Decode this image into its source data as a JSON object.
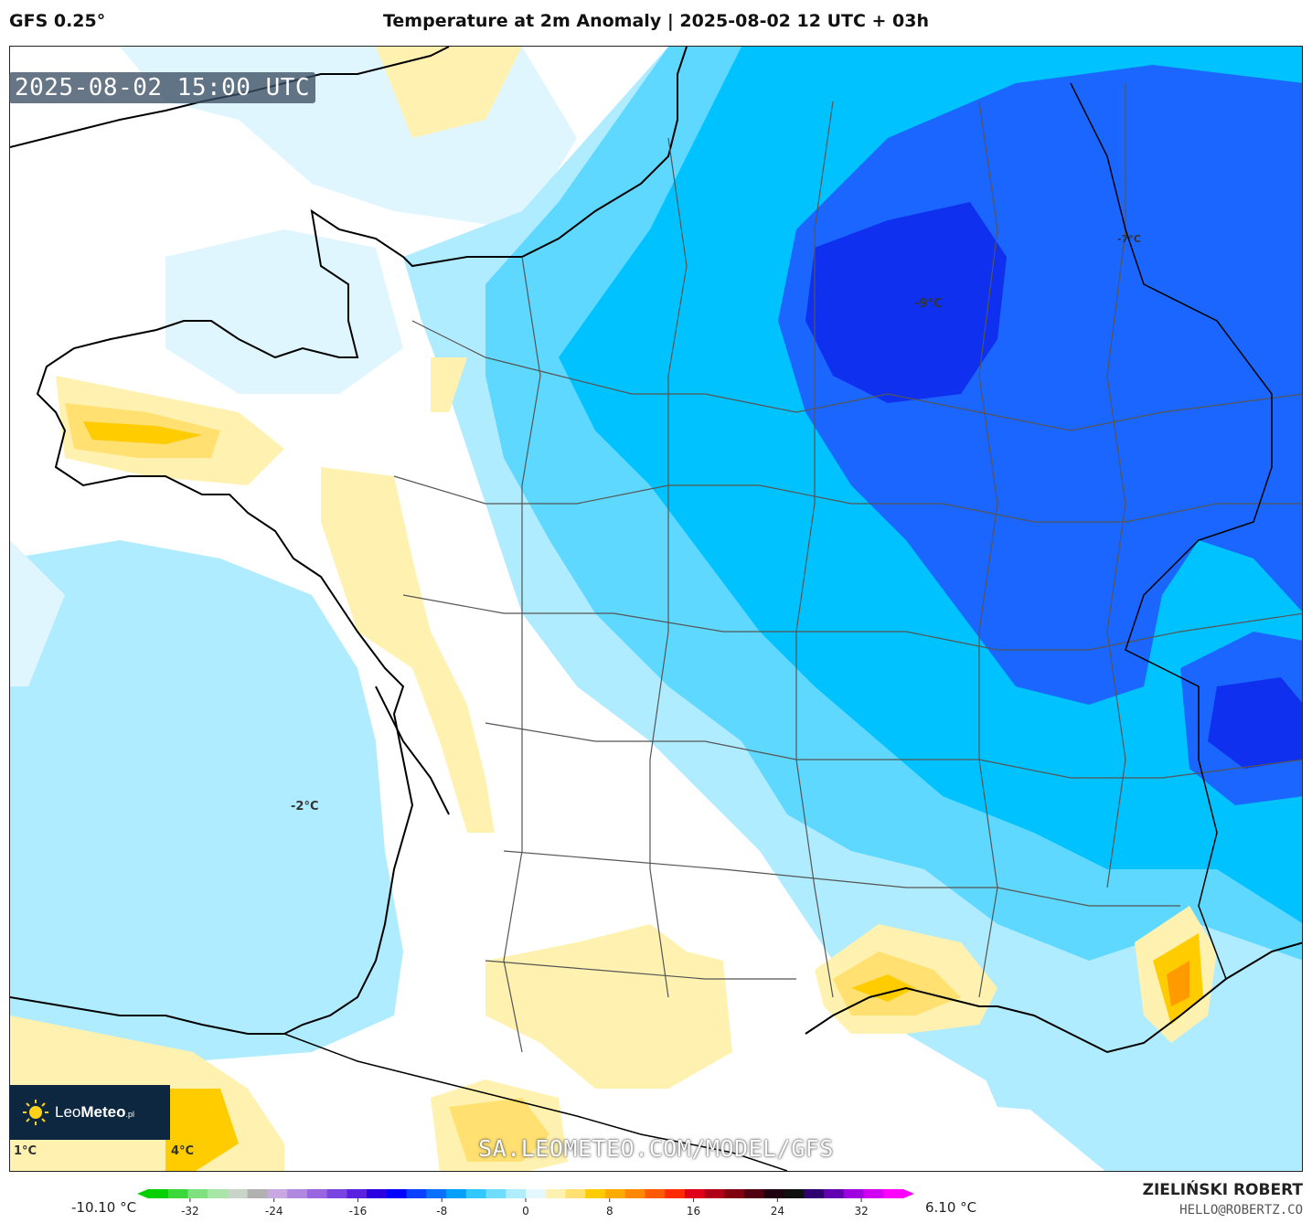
{
  "header": {
    "model": "GFS 0.25°",
    "title": "Temperature at 2m Anomaly | 2025-08-02 12 UTC + 03h"
  },
  "map": {
    "timestamp": "2025-08-02 15:00 UTC",
    "labels": {
      "max_cold": "-9°C",
      "atlantic": "-2°C",
      "bottom_left": "1°C",
      "bottom_mid": "4°C",
      "east_small": "-7°C"
    }
  },
  "branding": {
    "logo_text_light": "Leo",
    "logo_text_bold": "Meteo",
    "logo_suffix": ".pl",
    "url": "SA.LEOMETEO.COM/MODEL/GFS",
    "author": "ZIELIŃSKI ROBERT",
    "email": "HELLO@ROBERTZ.CO"
  },
  "legend": {
    "min_label": "-10.10 °C",
    "max_label": "6.10 °C",
    "ticks": [
      "-32",
      "-24",
      "-16",
      "-8",
      "0",
      "8",
      "16",
      "24",
      "32"
    ],
    "tick_values": [
      -32,
      -24,
      -16,
      -8,
      0,
      8,
      16,
      24,
      32
    ],
    "range": [
      -36,
      36
    ],
    "colors": [
      "#00d000",
      "#3ad83a",
      "#7ee07e",
      "#a8e6a8",
      "#c8d4c8",
      "#b0b0b0",
      "#c8a8e0",
      "#b088e0",
      "#9a66e0",
      "#7a44e0",
      "#5a22e0",
      "#2a00e0",
      "#0000ff",
      "#0a40ff",
      "#0a70ff",
      "#00a0ff",
      "#30c8ff",
      "#70ddff",
      "#b0eeff",
      "#e6f8ff",
      "#fff2b0",
      "#ffe070",
      "#ffcc00",
      "#ffaa00",
      "#ff8800",
      "#ff5a00",
      "#ff2a00",
      "#e0001a",
      "#b00018",
      "#800010",
      "#500010",
      "#200010",
      "#101010",
      "#300070",
      "#6000b0",
      "#a000e0",
      "#d000f0",
      "#ff00ff"
    ]
  },
  "colors": {
    "cold_deep": "#1030f0",
    "cold_strong": "#1a66ff",
    "cold_mid": "#00c2ff",
    "cold_light": "#5fd8ff",
    "cold_pale": "#b0ecff",
    "cold_faint": "#e0f6ff",
    "warm_pale": "#fff2b0",
    "warm_light": "#ffe070",
    "warm_mid": "#ffcc00",
    "warm_strong": "#ff9a00"
  }
}
